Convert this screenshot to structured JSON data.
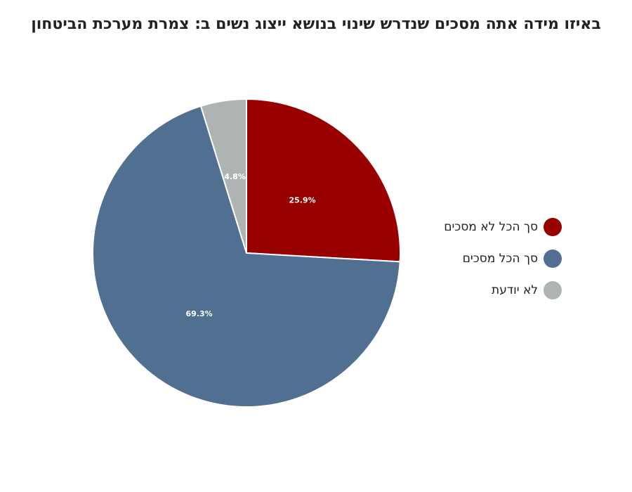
{
  "chart_data": {
    "type": "pie",
    "title": "באיזו מידה אתה מסכים שנדרש שינוי בנושא ייצוג נשים ב: צמרת מערכת הביטחון",
    "legend_position": "right",
    "slices": [
      {
        "name": "סך הכל לא מסכים",
        "value": 25.9,
        "label": "25.9%",
        "color": "#990000"
      },
      {
        "name": "סך הכל מסכים",
        "value": 69.3,
        "label": "69.3%",
        "color": "#516f90"
      },
      {
        "name": "לא יודעת",
        "value": 4.8,
        "label": "4.8%",
        "color": "#aeb3b3"
      }
    ]
  }
}
